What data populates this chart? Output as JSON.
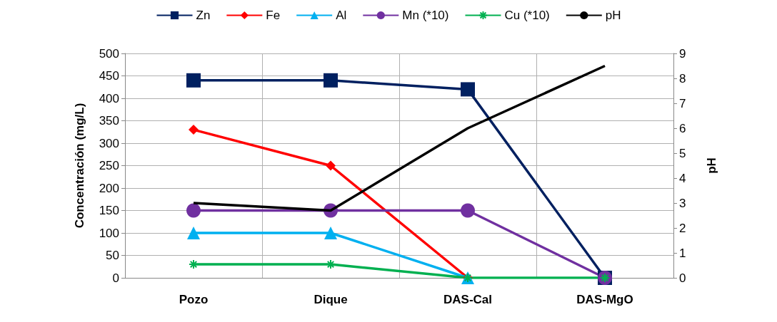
{
  "chart_data": {
    "type": "line",
    "categories": [
      "Pozo",
      "Dique",
      "DAS-Cal",
      "DAS-MgO"
    ],
    "ylabel": "Concentración (mg/L)",
    "y2label": "pH",
    "ylim": [
      0,
      500
    ],
    "yticks": [
      0,
      50,
      100,
      150,
      200,
      250,
      300,
      350,
      400,
      450,
      500
    ],
    "y2lim": [
      0,
      9
    ],
    "y2ticks": [
      0,
      1,
      2,
      3,
      4,
      5,
      6,
      7,
      8,
      9
    ],
    "grid": true,
    "legend": "top",
    "series": [
      {
        "name": "Zn",
        "color": "#002060",
        "marker": "square",
        "values": [
          440,
          440,
          420,
          0
        ]
      },
      {
        "name": "Fe",
        "color": "#ff0000",
        "marker": "diamond",
        "values": [
          330,
          250,
          0,
          null
        ]
      },
      {
        "name": "Al",
        "color": "#00b0f0",
        "marker": "triangle",
        "values": [
          100,
          100,
          0,
          null
        ]
      },
      {
        "name": "Mn (*10)",
        "color": "#7030a0",
        "marker": "circle",
        "values": [
          150,
          150,
          150,
          0
        ]
      },
      {
        "name": "Cu (*10)",
        "color": "#00b050",
        "marker": "cross",
        "values": [
          30,
          30,
          0,
          0
        ]
      },
      {
        "name": "pH",
        "color": "#000000",
        "marker": "none",
        "axis": "y2",
        "values": [
          3.0,
          2.7,
          6.0,
          8.5
        ]
      }
    ]
  }
}
